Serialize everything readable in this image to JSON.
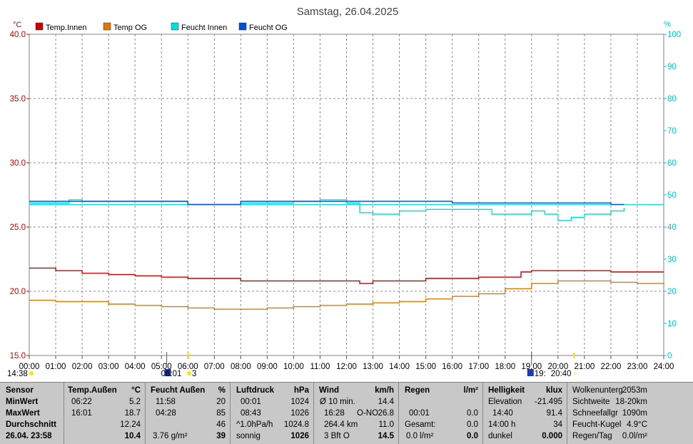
{
  "chart_data": {
    "type": "line",
    "title": "Samstag, 26.04.2025",
    "y_left": {
      "unit": "°C",
      "min": 15,
      "max": 40,
      "ticks": [
        "15.0",
        "20.0",
        "25.0",
        "30.0",
        "35.0",
        "40.0"
      ]
    },
    "y_right": {
      "unit": "%",
      "min": 0,
      "max": 100,
      "ticks": [
        "0",
        "10",
        "20",
        "30",
        "40",
        "50",
        "60",
        "70",
        "80",
        "90",
        "100"
      ]
    },
    "x_ticks": [
      "00:00",
      "01:00",
      "02:00",
      "03:00",
      "04:00",
      "05:00",
      "06:00",
      "07:00",
      "08:00",
      "09:00",
      "10:00",
      "11:00",
      "12:00",
      "13:00",
      "14:00",
      "15:00",
      "16:00",
      "17:00",
      "18:00",
      "19:00",
      "20:00",
      "21:00",
      "22:00",
      "23:00",
      "24:00"
    ],
    "x_range": [
      0,
      24
    ],
    "grid": true,
    "legend": [
      {
        "name": "Temp.Innen",
        "color": "#cc0000"
      },
      {
        "name": "Temp OG",
        "color": "#e07800"
      },
      {
        "name": "Feucht Innen",
        "color": "#00e0e0"
      },
      {
        "name": "Feucht OG",
        "color": "#0050e0"
      }
    ],
    "series": [
      {
        "name": "Temp.Innen",
        "axis": "left",
        "color": "#cc0000",
        "x": [
          0,
          1,
          2,
          3,
          4,
          5,
          6,
          8,
          10,
          12,
          12.5,
          13,
          15,
          17,
          18,
          18.6,
          19,
          20,
          21,
          22,
          23,
          24
        ],
        "y": [
          21.8,
          21.6,
          21.4,
          21.3,
          21.2,
          21.1,
          21.0,
          20.8,
          20.8,
          20.8,
          20.6,
          20.8,
          21.0,
          21.1,
          21.1,
          21.5,
          21.6,
          21.6,
          21.6,
          21.5,
          21.5,
          21.5
        ]
      },
      {
        "name": "Temp OG",
        "axis": "left",
        "color": "#e07800",
        "x": [
          0,
          1,
          2,
          3,
          4,
          5,
          6,
          7,
          8,
          9,
          10,
          11,
          12,
          13,
          14,
          15,
          16,
          17,
          18,
          19,
          20,
          21,
          22,
          23,
          24
        ],
        "y": [
          19.3,
          19.2,
          19.2,
          19.0,
          18.9,
          18.8,
          18.7,
          18.6,
          18.6,
          18.7,
          18.8,
          18.9,
          19.0,
          19.1,
          19.2,
          19.4,
          19.6,
          19.8,
          20.2,
          20.6,
          20.8,
          20.8,
          20.7,
          20.6,
          20.5
        ]
      },
      {
        "name": "Feucht Innen",
        "axis": "right",
        "color": "#00e0e0",
        "x": [
          0,
          0.5,
          1,
          1.5,
          2,
          3,
          4,
          5,
          6,
          8,
          9,
          10,
          11,
          12,
          12.5,
          13,
          14,
          15,
          16,
          17,
          17.5,
          18,
          19,
          19.5,
          20,
          20.5,
          21,
          22,
          22.5
        ],
        "y": [
          47.5,
          47.5,
          47.5,
          48.5,
          48,
          48,
          48,
          48,
          47,
          47.5,
          47.5,
          48,
          48.5,
          47.5,
          44.5,
          44,
          45,
          45.5,
          45.5,
          45.5,
          44,
          44,
          45,
          44,
          42,
          43,
          44,
          45,
          46
        ]
      },
      {
        "name": "Feucht OG",
        "axis": "right",
        "color": "#0050e0",
        "x": [
          0,
          5,
          6,
          8,
          10,
          12,
          14,
          16,
          18,
          20,
          22,
          22.5
        ],
        "y": [
          48,
          48,
          47,
          48,
          48,
          48,
          48,
          47.5,
          47.5,
          47.5,
          47,
          47
        ]
      }
    ],
    "constant_line": {
      "axis": "right",
      "value": 47,
      "color": "#00e0e0"
    },
    "sun_times": {
      "left": "14:38",
      "sunrise": "06:01",
      "sunrise_extra": "3",
      "sunset": "19:",
      "sunset_extra": "20:40"
    }
  },
  "panel": {
    "sensor": {
      "header": "Sensor",
      "rows": [
        "MinWert",
        "MaxWert",
        "Durchschnitt",
        "26.04. 23:58"
      ]
    },
    "temp": {
      "header": "Temp.Außen",
      "unit": "°C",
      "rows": [
        [
          "06:22",
          "5.2"
        ],
        [
          "16:01",
          "18.7"
        ],
        [
          "",
          "12.24"
        ],
        [
          "",
          "10.4"
        ]
      ]
    },
    "feucht": {
      "header": "Feucht Außen",
      "unit": "%",
      "rows": [
        [
          "11:58",
          "20"
        ],
        [
          "04:28",
          "85"
        ],
        [
          "",
          "46"
        ],
        [
          "3.76 g/m²",
          "39"
        ]
      ]
    },
    "luft": {
      "header": "Luftdruck",
      "unit": "hPa",
      "rows": [
        [
          "00:01",
          "1024"
        ],
        [
          "08:43",
          "1026"
        ],
        [
          "^1.0hPa/h",
          "1024.8"
        ],
        [
          "sonnig",
          "1026"
        ]
      ]
    },
    "wind": {
      "header": "Wind",
      "unit": "km/h",
      "rows": [
        [
          "Ø 10 min.",
          "",
          "14.4"
        ],
        [
          "16:28",
          "O-NO",
          "26.8"
        ],
        [
          "264.4 km",
          "",
          "11.0"
        ],
        [
          "3 Bft O",
          "",
          "14.5"
        ]
      ]
    },
    "regen": {
      "header": "Regen",
      "unit": "l/m²",
      "rows": [
        [
          "",
          ""
        ],
        [
          "00:01",
          "0.0"
        ],
        [
          "Gesamt:",
          "0.0"
        ],
        [
          "0.0 l/m²",
          "0.0"
        ]
      ]
    },
    "hell": {
      "header": "Helligkeit",
      "unit": "klux",
      "rows": [
        [
          "Elevation",
          "-21.495"
        ],
        [
          "14:40",
          "91.4"
        ],
        [
          "14:00 h",
          "34"
        ],
        [
          "dunkel",
          "0.000"
        ]
      ]
    },
    "extra": {
      "rows": [
        [
          "Wolkenunterg",
          "2053m"
        ],
        [
          "Sichtweite",
          "18-20km"
        ],
        [
          "Schneefallgr",
          "1090m"
        ],
        [
          "Feucht-Kugel",
          "4.9°C"
        ],
        [
          "Regen/Tag",
          "0.0l/m²"
        ]
      ]
    }
  }
}
